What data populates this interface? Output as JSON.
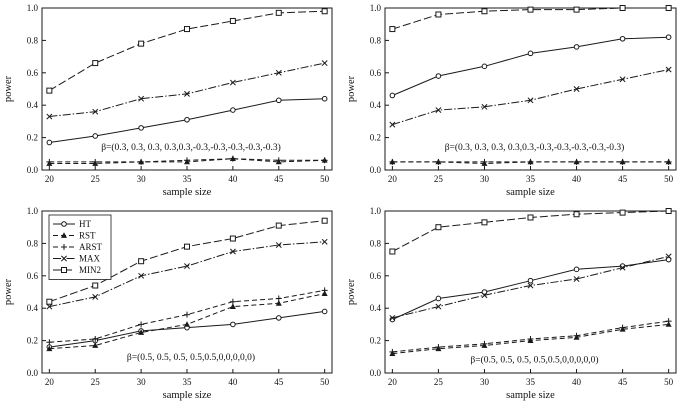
{
  "figure": {
    "background": "#ffffff",
    "line_color": "#1a1a1a",
    "xlabel": "sample size",
    "ylabel": "power",
    "x_ticks": [
      20,
      25,
      30,
      35,
      40,
      45,
      50
    ],
    "y_ticks": [
      0.0,
      0.2,
      0.4,
      0.6,
      0.8,
      1.0
    ]
  },
  "legend": {
    "entries": [
      "HT",
      "RST",
      "ARST",
      "MAX",
      "MIN2"
    ]
  },
  "chart_data": [
    {
      "type": "line",
      "position": "top-left",
      "xlabel": "sample size",
      "ylabel": "power",
      "xlim": [
        20,
        50
      ],
      "ylim": [
        0,
        1
      ],
      "grid": false,
      "legend": false,
      "annotation": "β=(0.3, 0.3, 0.3, 0.3,0.3,-0.3,-0.3,-0.3,-0.3,-0.3)",
      "x": [
        20,
        25,
        30,
        35,
        40,
        45,
        50
      ],
      "series": [
        {
          "name": "HT",
          "line": "solid",
          "marker": "circle",
          "values": [
            0.17,
            0.21,
            0.26,
            0.31,
            0.37,
            0.43,
            0.44
          ]
        },
        {
          "name": "RST",
          "line": "dashed",
          "marker": "triangle",
          "values": [
            0.04,
            0.04,
            0.05,
            0.05,
            0.07,
            0.05,
            0.06
          ]
        },
        {
          "name": "ARST",
          "line": "dashed",
          "marker": "plus",
          "values": [
            0.05,
            0.05,
            0.05,
            0.06,
            0.07,
            0.06,
            0.06
          ]
        },
        {
          "name": "MAX",
          "line": "dashdot",
          "marker": "x",
          "values": [
            0.33,
            0.36,
            0.44,
            0.47,
            0.54,
            0.6,
            0.66
          ]
        },
        {
          "name": "MIN2",
          "line": "longdash",
          "marker": "square",
          "values": [
            0.49,
            0.66,
            0.78,
            0.87,
            0.92,
            0.97,
            0.98
          ]
        }
      ]
    },
    {
      "type": "line",
      "position": "top-right",
      "xlabel": "sample size",
      "ylabel": "power",
      "xlim": [
        20,
        50
      ],
      "ylim": [
        0,
        1
      ],
      "grid": false,
      "legend": false,
      "annotation": "β=(0.3, 0.3, 0.3, 0.3,0.3,-0.3,-0.3,-0.3,-0.3,-0.3)",
      "x": [
        20,
        25,
        30,
        35,
        40,
        45,
        50
      ],
      "series": [
        {
          "name": "HT",
          "line": "solid",
          "marker": "circle",
          "values": [
            0.46,
            0.58,
            0.64,
            0.72,
            0.76,
            0.81,
            0.82
          ]
        },
        {
          "name": "RST",
          "line": "dashed",
          "marker": "triangle",
          "values": [
            0.05,
            0.05,
            0.04,
            0.05,
            0.05,
            0.05,
            0.05
          ]
        },
        {
          "name": "ARST",
          "line": "dashed",
          "marker": "plus",
          "values": [
            0.05,
            0.05,
            0.05,
            0.05,
            0.05,
            0.05,
            0.05
          ]
        },
        {
          "name": "MAX",
          "line": "dashdot",
          "marker": "x",
          "values": [
            0.28,
            0.37,
            0.39,
            0.43,
            0.5,
            0.56,
            0.62
          ]
        },
        {
          "name": "MIN2",
          "line": "longdash",
          "marker": "square",
          "values": [
            0.87,
            0.96,
            0.98,
            0.99,
            0.99,
            1.0,
            1.0
          ]
        }
      ]
    },
    {
      "type": "line",
      "position": "bottom-left",
      "xlabel": "sample size",
      "ylabel": "power",
      "xlim": [
        20,
        50
      ],
      "ylim": [
        0,
        1
      ],
      "grid": false,
      "legend": true,
      "annotation": "β=(0.5, 0.5, 0.5, 0.5,0.5,0,0,0,0,0)",
      "x": [
        20,
        25,
        30,
        35,
        40,
        45,
        50
      ],
      "series": [
        {
          "name": "HT",
          "line": "solid",
          "marker": "circle",
          "values": [
            0.16,
            0.2,
            0.26,
            0.28,
            0.3,
            0.34,
            0.38
          ]
        },
        {
          "name": "RST",
          "line": "dashed",
          "marker": "triangle",
          "values": [
            0.15,
            0.17,
            0.25,
            0.3,
            0.41,
            0.43,
            0.49
          ]
        },
        {
          "name": "ARST",
          "line": "dashed",
          "marker": "plus",
          "values": [
            0.19,
            0.21,
            0.3,
            0.36,
            0.44,
            0.46,
            0.51
          ]
        },
        {
          "name": "MAX",
          "line": "dashdot",
          "marker": "x",
          "values": [
            0.41,
            0.47,
            0.6,
            0.66,
            0.75,
            0.79,
            0.81
          ]
        },
        {
          "name": "MIN2",
          "line": "longdash",
          "marker": "square",
          "values": [
            0.44,
            0.54,
            0.69,
            0.78,
            0.83,
            0.91,
            0.94
          ]
        }
      ]
    },
    {
      "type": "line",
      "position": "bottom-right",
      "xlabel": "sample size",
      "ylabel": "power",
      "xlim": [
        20,
        50
      ],
      "ylim": [
        0,
        1
      ],
      "grid": false,
      "legend": false,
      "annotation": "β=(0.5, 0.5, 0.5, 0.5,0.5,0,0,0,0,0)",
      "x": [
        20,
        25,
        30,
        35,
        40,
        45,
        50
      ],
      "series": [
        {
          "name": "HT",
          "line": "solid",
          "marker": "circle",
          "values": [
            0.33,
            0.46,
            0.5,
            0.57,
            0.64,
            0.66,
            0.7
          ]
        },
        {
          "name": "RST",
          "line": "dashed",
          "marker": "triangle",
          "values": [
            0.12,
            0.15,
            0.17,
            0.2,
            0.22,
            0.27,
            0.3
          ]
        },
        {
          "name": "ARST",
          "line": "dashed",
          "marker": "plus",
          "values": [
            0.13,
            0.16,
            0.18,
            0.21,
            0.23,
            0.28,
            0.32
          ]
        },
        {
          "name": "MAX",
          "line": "dashdot",
          "marker": "x",
          "values": [
            0.34,
            0.41,
            0.48,
            0.54,
            0.58,
            0.65,
            0.72
          ]
        },
        {
          "name": "MIN2",
          "line": "longdash",
          "marker": "square",
          "values": [
            0.75,
            0.9,
            0.93,
            0.96,
            0.98,
            0.99,
            1.0
          ]
        }
      ]
    }
  ]
}
